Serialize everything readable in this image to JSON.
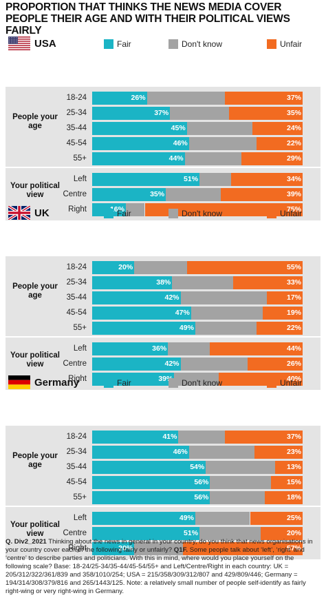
{
  "title": "PROPORTION THAT THINKS THE NEWS MEDIA COVER PEOPLE THEIR AGE AND WITH THEIR POLITICAL VIEWS FAIRLY",
  "colors": {
    "fair": "#1bb4c5",
    "dont_know": "#a3a3a3",
    "unfair": "#f26b21",
    "section_bg": "#e4e4e4"
  },
  "legend": {
    "fair": "Fair",
    "dont_know": "Don't know",
    "unfair": "Unfair"
  },
  "group_labels": {
    "age": "People your age",
    "politics": "Your political view"
  },
  "chart_data": [
    {
      "type": "bar",
      "stacked": true,
      "orientation": "horizontal",
      "country": "USA",
      "flag_icon": "usa-flag-icon",
      "categories": [
        "18-24",
        "25-34",
        "35-44",
        "45-54",
        "55+",
        "Left",
        "Centre",
        "Right"
      ],
      "groups": [
        {
          "name": "People your age",
          "categories": [
            "18-24",
            "25-34",
            "35-44",
            "45-54",
            "55+"
          ]
        },
        {
          "name": "Your political view",
          "categories": [
            "Left",
            "Centre",
            "Right"
          ]
        }
      ],
      "series": [
        {
          "name": "Fair",
          "values": [
            26,
            37,
            45,
            46,
            44,
            51,
            35,
            16
          ]
        },
        {
          "name": "Don't know",
          "values": [
            37,
            28,
            31,
            32,
            27,
            15,
            26,
            9
          ]
        },
        {
          "name": "Unfair",
          "values": [
            37,
            35,
            24,
            22,
            29,
            34,
            39,
            75
          ]
        }
      ],
      "xlim": [
        0,
        100
      ]
    },
    {
      "type": "bar",
      "stacked": true,
      "orientation": "horizontal",
      "country": "UK",
      "flag_icon": "uk-flag-icon",
      "categories": [
        "18-24",
        "25-34",
        "35-44",
        "45-54",
        "55+",
        "Left",
        "Centre",
        "Right"
      ],
      "groups": [
        {
          "name": "People your age",
          "categories": [
            "18-24",
            "25-34",
            "35-44",
            "45-54",
            "55+"
          ]
        },
        {
          "name": "Your political view",
          "categories": [
            "Left",
            "Centre",
            "Right"
          ]
        }
      ],
      "series": [
        {
          "name": "Fair",
          "values": [
            20,
            38,
            42,
            47,
            49,
            36,
            42,
            39
          ]
        },
        {
          "name": "Don't know",
          "values": [
            25,
            29,
            41,
            34,
            29,
            20,
            32,
            21
          ]
        },
        {
          "name": "Unfair",
          "values": [
            55,
            33,
            17,
            19,
            22,
            44,
            26,
            40
          ]
        }
      ],
      "xlim": [
        0,
        100
      ]
    },
    {
      "type": "bar",
      "stacked": true,
      "orientation": "horizontal",
      "country": "Germany",
      "flag_icon": "germany-flag-icon",
      "categories": [
        "18-24",
        "25-34",
        "35-44",
        "45-54",
        "55+",
        "Left",
        "Centre",
        "Right"
      ],
      "groups": [
        {
          "name": "People your age",
          "categories": [
            "18-24",
            "25-34",
            "35-44",
            "45-54",
            "55+"
          ]
        },
        {
          "name": "Your political view",
          "categories": [
            "Left",
            "Centre",
            "Right"
          ]
        }
      ],
      "series": [
        {
          "name": "Fair",
          "values": [
            41,
            46,
            54,
            56,
            56,
            49,
            51,
            20
          ]
        },
        {
          "name": "Don't know",
          "values": [
            22,
            31,
            33,
            29,
            26,
            26,
            29,
            23
          ]
        },
        {
          "name": "Unfair",
          "values": [
            37,
            23,
            13,
            15,
            18,
            25,
            20,
            57
          ]
        }
      ],
      "xlim": [
        0,
        100
      ]
    }
  ],
  "footnote": {
    "question": "Q. Div2_2021",
    "text1": " Thinking about the news in general in your country, do you think that news organisations in your country cover each of the following fairly or unfairly? ",
    "q1f": "Q1F.",
    "text2": " Some people talk about ‘left’, ‘right’ and ‘centre’ to describe parties and politicians. With this in mind, where would you place yourself on the following scale? Base: 18-24/25-34/35-44/45-54/55+ and Left/Centre/Right in each country: UK = 205/312/322/361/839 and 358/1010/254; USA = 215/358/309/312/807 and 429/809/446; Germany = 194/314/308/379/816 and 265/1443/125. Note: a relatively small number of people self-identify as fairly right-wing or very right-wing in Germany."
  }
}
